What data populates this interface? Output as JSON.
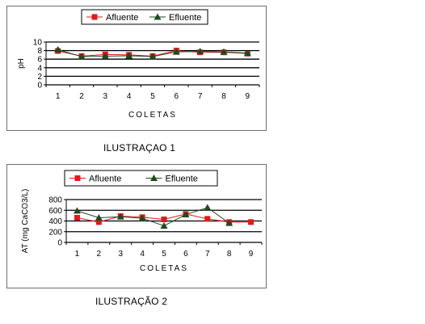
{
  "chart_data": [
    {
      "type": "line",
      "ylabel": "pH",
      "xlabel": "COLETAS",
      "x": [
        1,
        2,
        3,
        4,
        5,
        6,
        7,
        8,
        9
      ],
      "ylim": [
        0,
        10
      ],
      "yticks": [
        0,
        2,
        4,
        6,
        8,
        10
      ],
      "grid": "horizontal",
      "legend": "top-center",
      "series": [
        {
          "name": "Afluente",
          "color": "#e0191c",
          "marker": "square",
          "values": [
            7.9,
            6.7,
            7.1,
            7.0,
            6.7,
            8.0,
            7.6,
            7.6,
            7.3
          ]
        },
        {
          "name": "Efluente",
          "color": "#1f4a1f",
          "marker": "triangle",
          "values": [
            8.2,
            6.6,
            6.7,
            6.8,
            6.6,
            7.7,
            7.8,
            7.7,
            7.4
          ]
        }
      ]
    },
    {
      "type": "line",
      "ylabel": "AT (mg CaCO3/L)",
      "xlabel": "COLETAS",
      "x": [
        1,
        2,
        3,
        4,
        5,
        6,
        7,
        8,
        9
      ],
      "ylim": [
        0,
        800
      ],
      "yticks": [
        0,
        200,
        400,
        600,
        800
      ],
      "grid": "horizontal",
      "legend": "top-center",
      "series": [
        {
          "name": "Afluente",
          "color": "#e0191c",
          "marker": "square",
          "values": [
            460,
            380,
            490,
            470,
            430,
            530,
            440,
            380,
            380
          ]
        },
        {
          "name": "Efluente",
          "color": "#1f4a1f",
          "marker": "triangle",
          "values": [
            590,
            460,
            480,
            450,
            310,
            520,
            650,
            360,
            null
          ]
        }
      ]
    }
  ],
  "captions": {
    "one": "ILUSTRAÇAO 1",
    "two": "ILUSTRAÇÃO 2"
  }
}
